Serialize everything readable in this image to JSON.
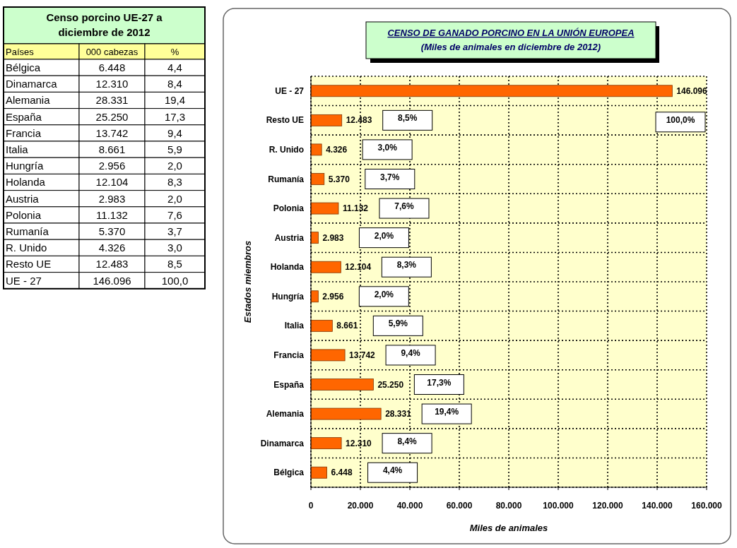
{
  "chart_data": [
    {
      "type": "other",
      "title": "Censo porcino UE-27 a diciembre de 2012",
      "categories": [
        "Países",
        "000 cabezas",
        "%"
      ],
      "annotations": [
        "Bélgica",
        "6.448",
        "4,4",
        "Dinamarca",
        "12.310",
        "8,4",
        "Alemania",
        "28.331",
        "19,4",
        "España",
        "25.250",
        "17,3",
        "Francia",
        "13.742",
        "9,4",
        "Italia",
        "8.661",
        "5,9",
        "Hungría",
        "2.956",
        "2,0",
        "Holanda",
        "12.104",
        "8,3",
        "Austria",
        "2.983",
        "2,0",
        "Polonia",
        "11.132",
        "7,6",
        "Rumanía",
        "5.370",
        "3,7",
        "R. Unido",
        "4.326",
        "3,0",
        "Resto UE",
        "12.483",
        "8,5",
        "UE - 27",
        "146.096",
        "100,0"
      ]
    },
    {
      "type": "bar",
      "orientation": "horizontal",
      "title": "CENSO DE GANADO PORCINO EN LA UNIÓN EUROPEA",
      "subtitle": "(Miles de animales en diciembre de 2012)",
      "xlabel": "Miles de animales",
      "ylabel": "Estados miembros",
      "categories": [
        "UE - 27",
        "Resto UE",
        "R. Unido",
        "Rumanía",
        "Polonia",
        "Austria",
        "Holanda",
        "Hungría",
        "Italia",
        "Francia",
        "España",
        "Alemania",
        "Dinamarca",
        "Bélgica"
      ],
      "values": [
        146096,
        12483,
        4326,
        5370,
        11132,
        2983,
        12104,
        2956,
        8661,
        13742,
        25250,
        28331,
        12310,
        6448
      ],
      "value_labels": [
        "146.096",
        "12.483",
        "4.326",
        "5.370",
        "11.132",
        "2.983",
        "12.104",
        "2.956",
        "8.661",
        "13.742",
        "25.250",
        "28.331",
        "12.310",
        "6.448"
      ],
      "color": "#ff6600",
      "xlim": [
        0,
        160000
      ],
      "xticks": [
        {
          "value": 0,
          "label": "0"
        },
        {
          "value": 20000,
          "label": "20.000"
        },
        {
          "value": 40000,
          "label": "40.000"
        },
        {
          "value": 60000,
          "label": "60.000"
        },
        {
          "value": 80000,
          "label": "80.000"
        },
        {
          "value": 100000,
          "label": "100.000"
        },
        {
          "value": 120000,
          "label": "120.000"
        },
        {
          "value": 140000,
          "label": "140.000"
        },
        {
          "value": 160000,
          "label": "160.000"
        }
      ],
      "grid": true,
      "annotations": [
        "100,0%",
        "8,5%",
        "3,0%",
        "3,7%",
        "7,6%",
        "2,0%",
        "8,3%",
        "2,0%",
        "5,9%",
        "9,4%",
        "17,3%",
        "19,4%",
        "8,4%",
        "4,4%"
      ]
    }
  ]
}
